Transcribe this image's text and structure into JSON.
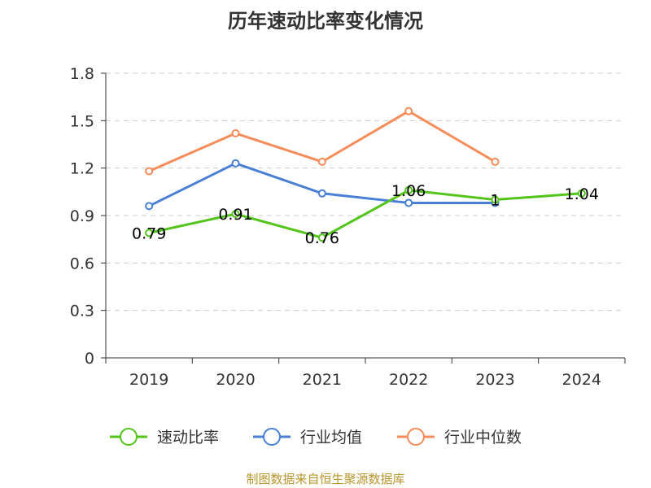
{
  "chart_data": {
    "type": "line",
    "title": "历年速动比率变化情况",
    "categories": [
      "2019",
      "2020",
      "2021",
      "2022",
      "2023",
      "2024"
    ],
    "ylim": [
      0,
      1.8
    ],
    "yticks": [
      "0",
      "0.3",
      "0.6",
      "0.9",
      "1.2",
      "1.5",
      "1.8"
    ],
    "grid": true,
    "legend_position": "bottom",
    "series": [
      {
        "name": "速动比率",
        "color": "#52c41a",
        "values": [
          0.79,
          0.91,
          0.76,
          1.06,
          1.0,
          1.04
        ],
        "data_labels": [
          "0.79",
          "0.91",
          "0.76",
          "1.06",
          "1",
          "1.04"
        ]
      },
      {
        "name": "行业均值",
        "color": "#4a7fd6",
        "values": [
          0.96,
          1.23,
          1.04,
          0.98,
          0.98,
          null
        ]
      },
      {
        "name": "行业中位数",
        "color": "#f58c5a",
        "values": [
          1.18,
          1.42,
          1.24,
          1.56,
          1.24,
          null
        ]
      }
    ]
  },
  "footer": {
    "source": "制图数据来自恒生聚源数据库"
  }
}
